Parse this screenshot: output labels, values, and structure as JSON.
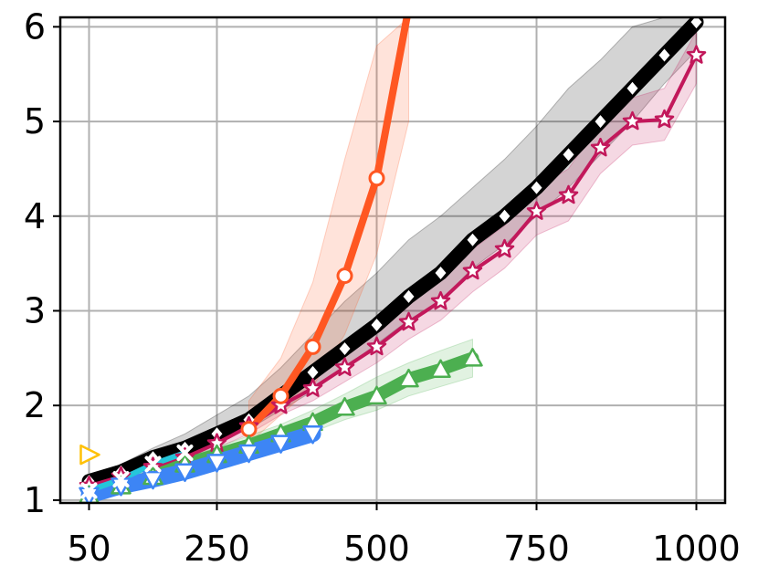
{
  "chart_data": {
    "type": "line",
    "title": "",
    "xlabel": "",
    "ylabel": "",
    "xlim": [
      5,
      1045
    ],
    "ylim": [
      0.97,
      6.1
    ],
    "grid": true,
    "legend": "none",
    "x_ticks": [
      {
        "value": 50,
        "label": "50"
      },
      {
        "value": 250,
        "label": "250"
      },
      {
        "value": 500,
        "label": "500"
      },
      {
        "value": 750,
        "label": "750"
      },
      {
        "value": 1000,
        "label": "1000"
      }
    ],
    "x_gridlines": [
      50,
      250,
      500,
      750,
      1000
    ],
    "y_ticks": [
      {
        "value": 1,
        "label": "1"
      },
      {
        "value": 2,
        "label": "2"
      },
      {
        "value": 3,
        "label": "3"
      },
      {
        "value": 4,
        "label": "4"
      },
      {
        "value": 5,
        "label": "5"
      },
      {
        "value": 6,
        "label": "6"
      }
    ],
    "series": [
      {
        "color": "#000000",
        "marker": "diamond",
        "marker_color": "#ffffff",
        "line_width": 16,
        "x": [
          50,
          100,
          150,
          200,
          250,
          300,
          350,
          400,
          450,
          500,
          550,
          600,
          650,
          700,
          750,
          800,
          850,
          900,
          950,
          1000
        ],
        "y": [
          1.2,
          1.3,
          1.45,
          1.55,
          1.7,
          1.85,
          2.1,
          2.35,
          2.6,
          2.85,
          3.15,
          3.4,
          3.75,
          4.0,
          4.3,
          4.65,
          5.0,
          5.35,
          5.7,
          6.05
        ],
        "band_low": [
          1.18,
          1.27,
          1.4,
          1.5,
          1.62,
          1.75,
          1.95,
          2.15,
          2.4,
          2.65,
          2.9,
          3.1,
          3.45,
          3.7,
          4.0,
          4.3,
          4.65,
          5.0,
          5.4,
          5.75
        ],
        "band_high": [
          1.25,
          1.38,
          1.55,
          1.7,
          1.9,
          2.1,
          2.4,
          2.75,
          3.1,
          3.4,
          3.75,
          4.0,
          4.3,
          4.6,
          4.95,
          5.35,
          5.65,
          6.0,
          6.1,
          6.1
        ]
      },
      {
        "color": "#c2185b",
        "marker": "star",
        "marker_color": "#ffffff",
        "line_width": 4,
        "x": [
          50,
          100,
          150,
          200,
          250,
          300,
          350,
          400,
          450,
          500,
          550,
          600,
          650,
          700,
          750,
          800,
          850,
          900,
          950,
          1000
        ],
        "y": [
          1.15,
          1.25,
          1.35,
          1.45,
          1.6,
          1.78,
          2.0,
          2.18,
          2.4,
          2.62,
          2.88,
          3.1,
          3.42,
          3.65,
          4.05,
          4.22,
          4.72,
          5.0,
          5.02,
          5.7
        ],
        "band_low": [
          1.1,
          1.2,
          1.3,
          1.4,
          1.55,
          1.7,
          1.9,
          2.05,
          2.25,
          2.45,
          2.7,
          2.9,
          3.2,
          3.45,
          3.8,
          3.95,
          4.45,
          4.75,
          4.8,
          5.4
        ],
        "band_high": [
          1.2,
          1.3,
          1.42,
          1.52,
          1.68,
          1.88,
          2.12,
          2.32,
          2.55,
          2.8,
          3.08,
          3.32,
          3.65,
          3.9,
          4.3,
          4.5,
          5.0,
          5.25,
          5.35,
          5.95
        ]
      },
      {
        "color": "#ff5722",
        "marker": "circle",
        "marker_color": "#ffffff",
        "line_width": 8,
        "x": [
          300,
          350,
          400,
          450,
          500,
          550
        ],
        "y": [
          1.75,
          2.1,
          2.62,
          3.37,
          4.4,
          6.2
        ],
        "band_low": [
          1.6,
          1.9,
          2.2,
          2.75,
          3.6,
          5.0
        ],
        "band_high": [
          2.05,
          2.5,
          3.3,
          4.6,
          5.8,
          6.1
        ]
      },
      {
        "color": "#4caf50",
        "marker": "triangle-up",
        "marker_color": "#ffffff",
        "line_width": 14,
        "x": [
          50,
          100,
          150,
          200,
          250,
          300,
          350,
          400,
          450,
          500,
          550,
          600,
          650
        ],
        "y": [
          1.05,
          1.15,
          1.25,
          1.38,
          1.48,
          1.58,
          1.7,
          1.82,
          1.98,
          2.1,
          2.28,
          2.38,
          2.5
        ],
        "band_low": [
          1.03,
          1.1,
          1.2,
          1.32,
          1.42,
          1.52,
          1.62,
          1.72,
          1.85,
          1.95,
          2.1,
          2.2,
          2.3
        ],
        "band_high": [
          1.08,
          1.2,
          1.32,
          1.45,
          1.56,
          1.68,
          1.8,
          1.95,
          2.12,
          2.3,
          2.45,
          2.58,
          2.7
        ]
      },
      {
        "color": "#3d85f5",
        "marker": "triangle-down",
        "marker_color": "#ffffff",
        "line_width": 18,
        "x": [
          50,
          100,
          150,
          200,
          250,
          300,
          350,
          400
        ],
        "y": [
          1.05,
          1.15,
          1.22,
          1.3,
          1.4,
          1.5,
          1.6,
          1.7
        ],
        "band_low": [
          1.02,
          1.1,
          1.17,
          1.25,
          1.34,
          1.44,
          1.53,
          1.62
        ],
        "band_high": [
          1.08,
          1.2,
          1.28,
          1.36,
          1.46,
          1.57,
          1.67,
          1.78
        ]
      },
      {
        "color": "#26c6da",
        "marker": "x",
        "marker_color": "#26c6da",
        "line_width": 6,
        "x": [
          50,
          100,
          150,
          200
        ],
        "y": [
          1.1,
          1.22,
          1.38,
          1.5
        ],
        "band_low": [
          1.08,
          1.18,
          1.32,
          1.44
        ],
        "band_high": [
          1.13,
          1.26,
          1.44,
          1.56
        ]
      },
      {
        "color": "#ffc107",
        "marker": "triangle-right",
        "marker_color": "#ffffff",
        "line_width": 0,
        "x": [
          50
        ],
        "y": [
          1.48
        ]
      }
    ]
  }
}
